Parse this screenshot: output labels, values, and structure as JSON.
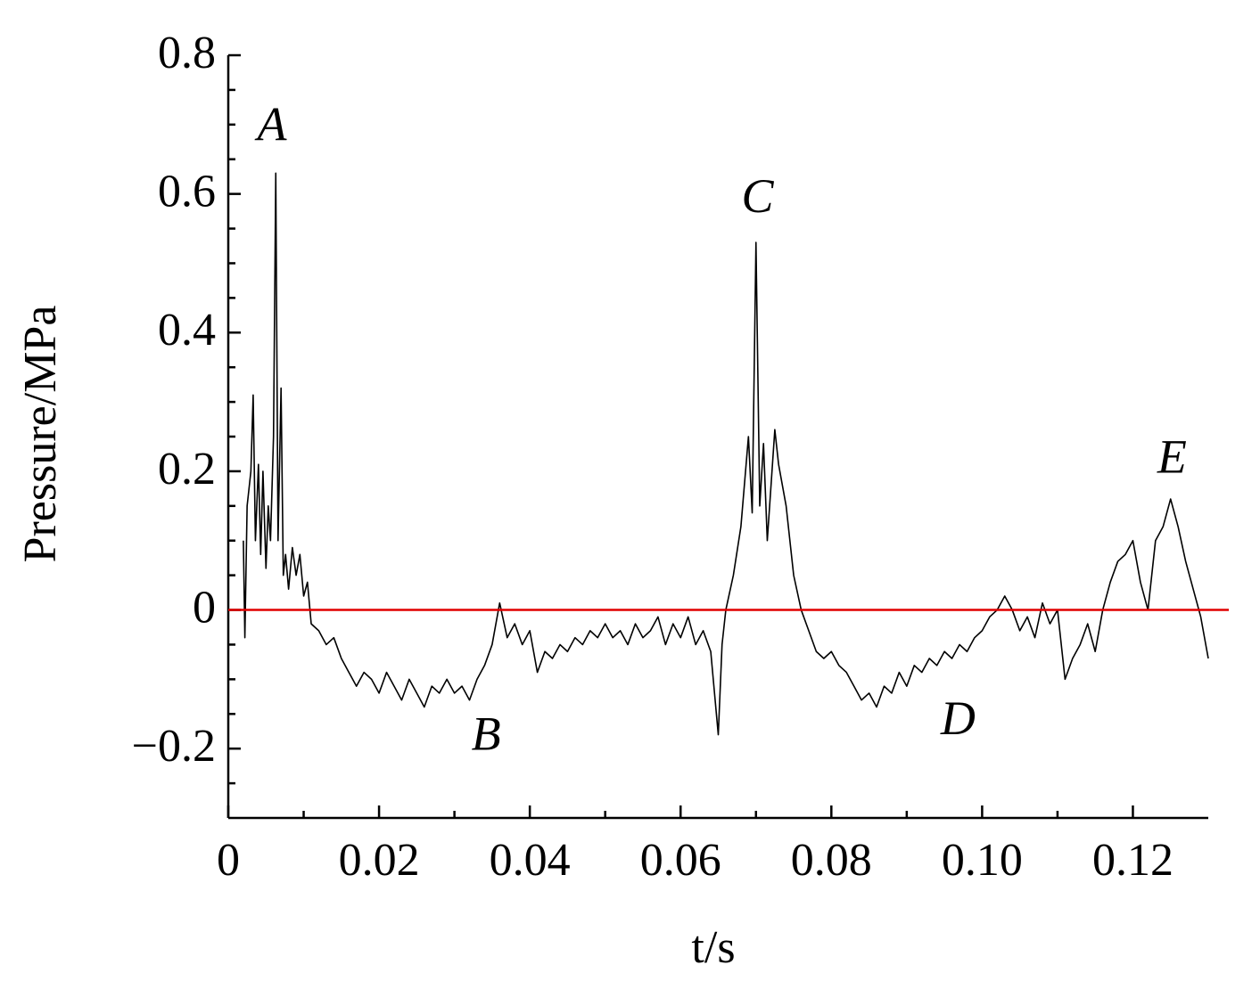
{
  "chart_data": {
    "type": "line",
    "xlabel": "t/s",
    "ylabel": "Pressure/MPa",
    "xlim": [
      0,
      0.13
    ],
    "ylim": [
      -0.3,
      0.8
    ],
    "xticks": [
      0,
      0.02,
      0.04,
      0.06,
      0.08,
      {
        "value": 0.1,
        "label": "0.10"
      },
      0.12
    ],
    "yticks": [
      {
        "value": -0.2,
        "label": "−0.2"
      },
      0,
      0.2,
      0.4,
      0.6,
      0.8
    ],
    "xminorticks": [
      0.01,
      0.03,
      0.05,
      0.07,
      0.09,
      0.11
    ],
    "yminorticks": [
      -0.25,
      -0.15,
      -0.1,
      -0.05,
      0.05,
      0.1,
      0.15,
      0.25,
      0.3,
      0.35,
      0.45,
      0.5,
      0.55,
      0.65,
      0.7,
      0.75
    ],
    "reference_line": {
      "value": 0,
      "color": "#e00000"
    },
    "annotations": [
      {
        "text": "A",
        "x": 0.0058,
        "y": 0.693
      },
      {
        "text": "B",
        "x": 0.0342,
        "y": -0.186
      },
      {
        "text": "C",
        "x": 0.0702,
        "y": 0.59
      },
      {
        "text": "D",
        "x": 0.0968,
        "y": -0.163
      },
      {
        "text": "E",
        "x": 0.1252,
        "y": 0.214
      }
    ],
    "x": [
      0.002,
      0.0022,
      0.0025,
      0.003,
      0.0033,
      0.0036,
      0.004,
      0.0043,
      0.0046,
      0.005,
      0.0053,
      0.0056,
      0.006,
      0.0063,
      0.0066,
      0.007,
      0.0073,
      0.0076,
      0.008,
      0.0085,
      0.009,
      0.0095,
      0.01,
      0.0105,
      0.011,
      0.012,
      0.013,
      0.014,
      0.015,
      0.016,
      0.017,
      0.018,
      0.019,
      0.02,
      0.021,
      0.022,
      0.023,
      0.024,
      0.025,
      0.026,
      0.027,
      0.028,
      0.029,
      0.03,
      0.031,
      0.032,
      0.033,
      0.034,
      0.035,
      0.036,
      0.037,
      0.038,
      0.039,
      0.04,
      0.041,
      0.042,
      0.043,
      0.044,
      0.045,
      0.046,
      0.047,
      0.048,
      0.049,
      0.05,
      0.051,
      0.052,
      0.053,
      0.054,
      0.055,
      0.056,
      0.057,
      0.058,
      0.059,
      0.06,
      0.061,
      0.062,
      0.063,
      0.064,
      0.065,
      0.0655,
      0.066,
      0.067,
      0.068,
      0.069,
      0.0695,
      0.07,
      0.0705,
      0.071,
      0.0715,
      0.072,
      0.0725,
      0.073,
      0.074,
      0.075,
      0.076,
      0.077,
      0.078,
      0.079,
      0.08,
      0.081,
      0.082,
      0.083,
      0.084,
      0.085,
      0.086,
      0.087,
      0.088,
      0.089,
      0.09,
      0.091,
      0.092,
      0.093,
      0.094,
      0.095,
      0.096,
      0.097,
      0.098,
      0.099,
      0.1,
      0.101,
      0.102,
      0.103,
      0.104,
      0.105,
      0.106,
      0.107,
      0.108,
      0.109,
      0.11,
      0.111,
      0.112,
      0.113,
      0.114,
      0.115,
      0.116,
      0.117,
      0.118,
      0.119,
      0.12,
      0.121,
      0.122,
      0.123,
      0.124,
      0.125,
      0.126,
      0.127,
      0.128,
      0.129,
      0.13
    ],
    "series": [
      {
        "name": "Pressure",
        "color": "#000000",
        "values": [
          0.1,
          -0.04,
          0.15,
          0.2,
          0.31,
          0.1,
          0.21,
          0.08,
          0.2,
          0.06,
          0.15,
          0.1,
          0.25,
          0.63,
          0.1,
          0.32,
          0.05,
          0.08,
          0.03,
          0.09,
          0.05,
          0.08,
          0.02,
          0.04,
          -0.02,
          -0.03,
          -0.05,
          -0.04,
          -0.07,
          -0.09,
          -0.11,
          -0.09,
          -0.1,
          -0.12,
          -0.09,
          -0.11,
          -0.13,
          -0.1,
          -0.12,
          -0.14,
          -0.11,
          -0.12,
          -0.1,
          -0.12,
          -0.11,
          -0.13,
          -0.1,
          -0.08,
          -0.05,
          0.01,
          -0.04,
          -0.02,
          -0.05,
          -0.03,
          -0.09,
          -0.06,
          -0.07,
          -0.05,
          -0.06,
          -0.04,
          -0.05,
          -0.03,
          -0.04,
          -0.02,
          -0.04,
          -0.03,
          -0.05,
          -0.02,
          -0.04,
          -0.03,
          -0.01,
          -0.05,
          -0.02,
          -0.04,
          -0.01,
          -0.05,
          -0.03,
          -0.06,
          -0.18,
          -0.05,
          0.0,
          0.05,
          0.12,
          0.25,
          0.14,
          0.53,
          0.15,
          0.24,
          0.1,
          0.18,
          0.26,
          0.21,
          0.15,
          0.05,
          0.0,
          -0.03,
          -0.06,
          -0.07,
          -0.06,
          -0.08,
          -0.09,
          -0.11,
          -0.13,
          -0.12,
          -0.14,
          -0.11,
          -0.12,
          -0.09,
          -0.11,
          -0.08,
          -0.09,
          -0.07,
          -0.08,
          -0.06,
          -0.07,
          -0.05,
          -0.06,
          -0.04,
          -0.03,
          -0.01,
          0.0,
          0.02,
          0.0,
          -0.03,
          -0.01,
          -0.04,
          0.01,
          -0.02,
          0.0,
          -0.1,
          -0.07,
          -0.05,
          -0.02,
          -0.06,
          0.0,
          0.04,
          0.07,
          0.08,
          0.1,
          0.04,
          0.0,
          0.1,
          0.12,
          0.16,
          0.12,
          0.07,
          0.03,
          -0.01,
          -0.07
        ]
      }
    ]
  }
}
